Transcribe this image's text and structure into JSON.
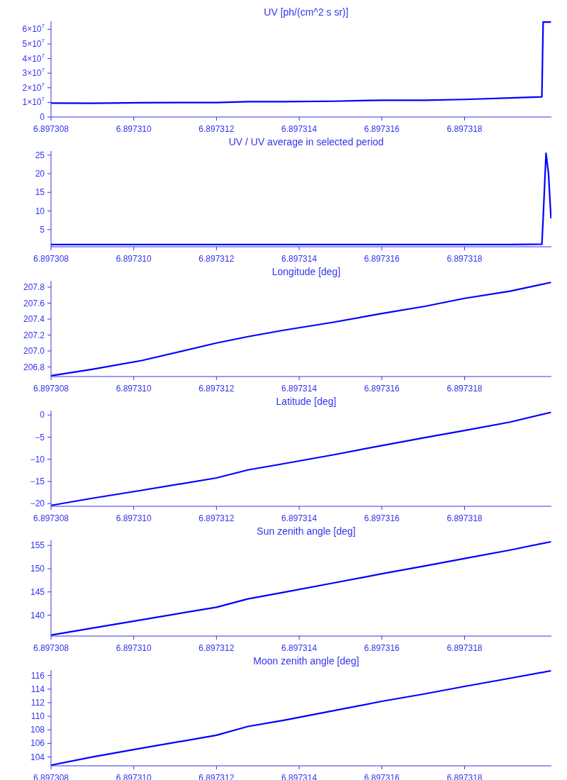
{
  "chart_data": [
    {
      "type": "line",
      "title": "UV [ph/(cm^2 s sr)]",
      "xlim": [
        6.897308,
        6.8973201
      ],
      "xticks": [
        {
          "value": 6.897308,
          "label": "6.897308"
        },
        {
          "value": 6.89731,
          "label": "6.897310"
        },
        {
          "value": 6.897312,
          "label": "6.897312"
        },
        {
          "value": 6.897314,
          "label": "6.897314"
        },
        {
          "value": 6.897316,
          "label": "6.897316"
        },
        {
          "value": 6.897318,
          "label": "6.897318"
        }
      ],
      "ylim": [
        0,
        65500000
      ],
      "yticks": [
        0,
        {
          "value": 10000000,
          "label": "1×10$^{7}$"
        },
        {
          "value": 20000000,
          "label": "2×10$^{7}$"
        },
        {
          "value": 30000000,
          "label": "3×10$^{7}$"
        },
        {
          "value": 40000000,
          "label": "4×10$^{7}$"
        },
        {
          "value": 50000000,
          "label": "5×10$^{7}$"
        },
        {
          "value": 60000000,
          "label": "6×10$^{7}$"
        }
      ],
      "series": [
        {
          "color": "#0000ff",
          "x": [
            6.897308,
            6.89730899,
            6.89731019,
            6.897312,
            6.89731276,
            6.89731362,
            6.89731482,
            6.897316,
            6.89731704,
            6.897318,
            6.8973191,
            6.89731987,
            6.8973199,
            6.89732009
          ],
          "values": [
            9500000,
            9400000,
            9800000,
            9900000,
            10500000,
            10500000,
            10800000,
            11500000,
            11500000,
            12000000,
            13000000,
            13800000,
            65000000,
            65000000
          ]
        }
      ]
    },
    {
      "type": "line",
      "title": "UV / UV average in selected period",
      "xlim": [
        6.897308,
        6.8973201
      ],
      "xticks": [
        {
          "value": 6.897308,
          "label": "6.897308"
        },
        {
          "value": 6.89731,
          "label": "6.897310"
        },
        {
          "value": 6.897312,
          "label": "6.897312"
        },
        {
          "value": 6.897314,
          "label": "6.897314"
        },
        {
          "value": 6.897316,
          "label": "6.897316"
        },
        {
          "value": 6.897318,
          "label": "6.897318"
        }
      ],
      "ylim": [
        0.4,
        26.1
      ],
      "yticks": [
        5,
        10,
        15,
        20,
        25
      ],
      "series": [
        {
          "color": "#0000ff",
          "x": [
            6.897308,
            6.89731019,
            6.89731276,
            6.89731482,
            6.89731704,
            6.8973191,
            6.89731987,
            6.8973199,
            6.89731997,
            6.89732003,
            6.89732009
          ],
          "values": [
            1.0,
            1.0,
            1.0,
            1.0,
            1.0,
            1.0,
            1.1,
            8,
            25.5,
            20,
            8
          ]
        }
      ]
    },
    {
      "type": "line",
      "title": "Longitude [deg]",
      "xlim": [
        6.897308,
        6.8973201
      ],
      "xticks": [
        {
          "value": 6.897308,
          "label": "6.897308"
        },
        {
          "value": 6.89731,
          "label": "6.897310"
        },
        {
          "value": 6.897312,
          "label": "6.897312"
        },
        {
          "value": 6.897314,
          "label": "6.897314"
        },
        {
          "value": 6.897316,
          "label": "6.897316"
        },
        {
          "value": 6.897318,
          "label": "6.897318"
        }
      ],
      "ylim": [
        206.68,
        207.88
      ],
      "yticks": [
        206.8,
        {
          "value": 207,
          "label": "207.0"
        },
        207.2,
        207.4,
        207.6,
        207.8
      ],
      "series": [
        {
          "color": "#0000ff",
          "x": [
            6.897308,
            6.89730899,
            6.89731019,
            6.897312,
            6.89731276,
            6.89731362,
            6.89731482,
            6.897316,
            6.89731704,
            6.897318,
            6.8973191,
            6.89732009
          ],
          "values": [
            206.69,
            206.77,
            206.88,
            207.1,
            207.18,
            207.26,
            207.36,
            207.47,
            207.56,
            207.66,
            207.75,
            207.86
          ]
        }
      ]
    },
    {
      "type": "line",
      "title": "Latitude [deg]",
      "xlim": [
        6.897308,
        6.8973201
      ],
      "xticks": [
        {
          "value": 6.897308,
          "label": "6.897308"
        },
        {
          "value": 6.89731,
          "label": "6.897310"
        },
        {
          "value": 6.897312,
          "label": "6.897312"
        },
        {
          "value": 6.897314,
          "label": "6.897314"
        },
        {
          "value": 6.897316,
          "label": "6.897316"
        },
        {
          "value": 6.897318,
          "label": "6.897318"
        }
      ],
      "ylim": [
        -20.6,
        1.0
      ],
      "yticks": [
        {
          "value": -20,
          "label": "−20"
        },
        {
          "value": -15,
          "label": "−15"
        },
        {
          "value": -10,
          "label": "−10"
        },
        {
          "value": -5,
          "label": "−5"
        },
        0
      ],
      "series": [
        {
          "color": "#0000ff",
          "x": [
            6.897308,
            6.89730899,
            6.89731019,
            6.897312,
            6.89731276,
            6.89731362,
            6.89731482,
            6.897316,
            6.89731704,
            6.897318,
            6.8973191,
            6.89732009
          ],
          "values": [
            -20.4,
            -18.8,
            -17.0,
            -14.2,
            -12.4,
            -11.0,
            -9.0,
            -6.9,
            -5.1,
            -3.5,
            -1.6,
            0.6
          ]
        }
      ]
    },
    {
      "type": "line",
      "title": "Sun zenith angle [deg]",
      "xlim": [
        6.897308,
        6.8973201
      ],
      "xticks": [
        {
          "value": 6.897308,
          "label": "6.897308"
        },
        {
          "value": 6.89731,
          "label": "6.897310"
        },
        {
          "value": 6.897312,
          "label": "6.897312"
        },
        {
          "value": 6.897314,
          "label": "6.897314"
        },
        {
          "value": 6.897316,
          "label": "6.897316"
        },
        {
          "value": 6.897318,
          "label": "6.897318"
        }
      ],
      "ylim": [
        135.5,
        156.1
      ],
      "yticks": [
        140,
        145,
        150,
        155
      ],
      "series": [
        {
          "color": "#0000ff",
          "x": [
            6.897308,
            6.89730899,
            6.89731019,
            6.897312,
            6.89731276,
            6.89731362,
            6.89731482,
            6.897316,
            6.89731704,
            6.897318,
            6.8973191,
            6.89732009
          ],
          "values": [
            135.7,
            137.2,
            139.0,
            141.7,
            143.5,
            144.9,
            146.9,
            148.9,
            150.6,
            152.2,
            154.0,
            155.8
          ]
        }
      ]
    },
    {
      "type": "line",
      "title": "Moon zenith angle [deg]",
      "xlim": [
        6.897308,
        6.8973201
      ],
      "xticks": [
        {
          "value": 6.897308,
          "label": "6.897308"
        },
        {
          "value": 6.89731,
          "label": "6.897310"
        },
        {
          "value": 6.897312,
          "label": "6.897312"
        },
        {
          "value": 6.897314,
          "label": "6.897314"
        },
        {
          "value": 6.897316,
          "label": "6.897316"
        },
        {
          "value": 6.897318,
          "label": "6.897318"
        }
      ],
      "ylim": [
        102.7,
        116.8
      ],
      "yticks": [
        104,
        106,
        108,
        110,
        112,
        114,
        116
      ],
      "series": [
        {
          "color": "#0000ff",
          "x": [
            6.897308,
            6.89730899,
            6.89731019,
            6.897312,
            6.89731276,
            6.89731362,
            6.89731482,
            6.897316,
            6.89731704,
            6.897318,
            6.8973191,
            6.89732009
          ],
          "values": [
            102.8,
            104.0,
            105.3,
            107.2,
            108.5,
            109.4,
            110.8,
            112.2,
            113.3,
            114.4,
            115.6,
            116.7
          ]
        }
      ]
    }
  ]
}
